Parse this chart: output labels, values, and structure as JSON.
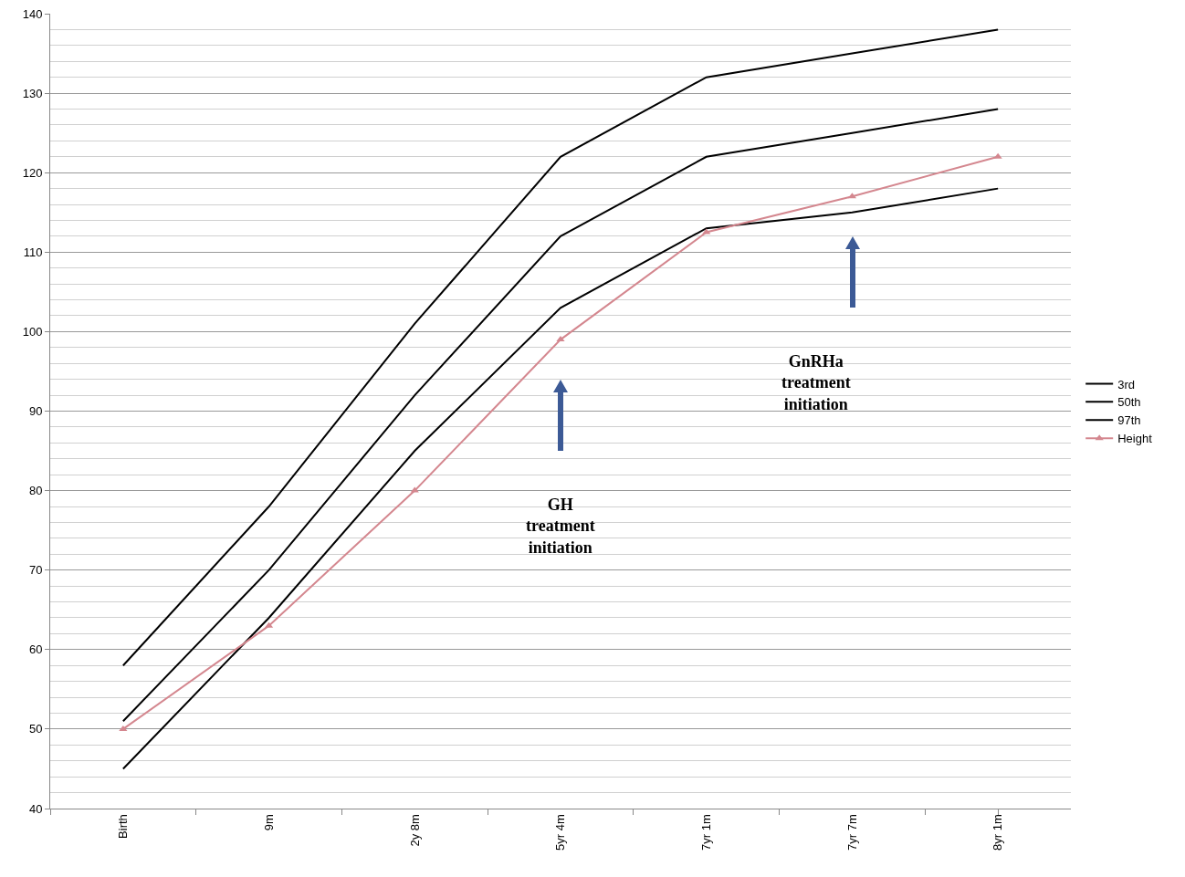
{
  "chart_data": {
    "type": "line",
    "categories": [
      "Birth",
      "9m",
      "2y 8m",
      "5yr 4m",
      "7yr 1m",
      "7yr 7m",
      "8yr 1m"
    ],
    "series": [
      {
        "name": "3rd",
        "color": "#000000",
        "marker": "none",
        "values": [
          45,
          64,
          85,
          103,
          113,
          115,
          118
        ]
      },
      {
        "name": "50th",
        "color": "#000000",
        "marker": "none",
        "values": [
          51,
          70,
          92,
          112,
          122,
          125,
          128
        ]
      },
      {
        "name": "97th",
        "color": "#000000",
        "marker": "none",
        "values": [
          58,
          78,
          101,
          122,
          132,
          135,
          138
        ]
      },
      {
        "name": "Height",
        "color": "#d4878f",
        "marker": "triangle",
        "values": [
          50,
          63,
          80,
          99,
          112.5,
          117,
          122
        ]
      }
    ],
    "annotations": [
      "GH\ntreatment\ninitiation",
      "GnRHa\ntreatment\ninitiation"
    ],
    "ylim": [
      40,
      140
    ],
    "yticks": [
      40,
      50,
      60,
      70,
      80,
      90,
      100,
      110,
      120,
      130,
      140
    ],
    "grid": "y",
    "legend": "right",
    "line_style": "solid"
  }
}
